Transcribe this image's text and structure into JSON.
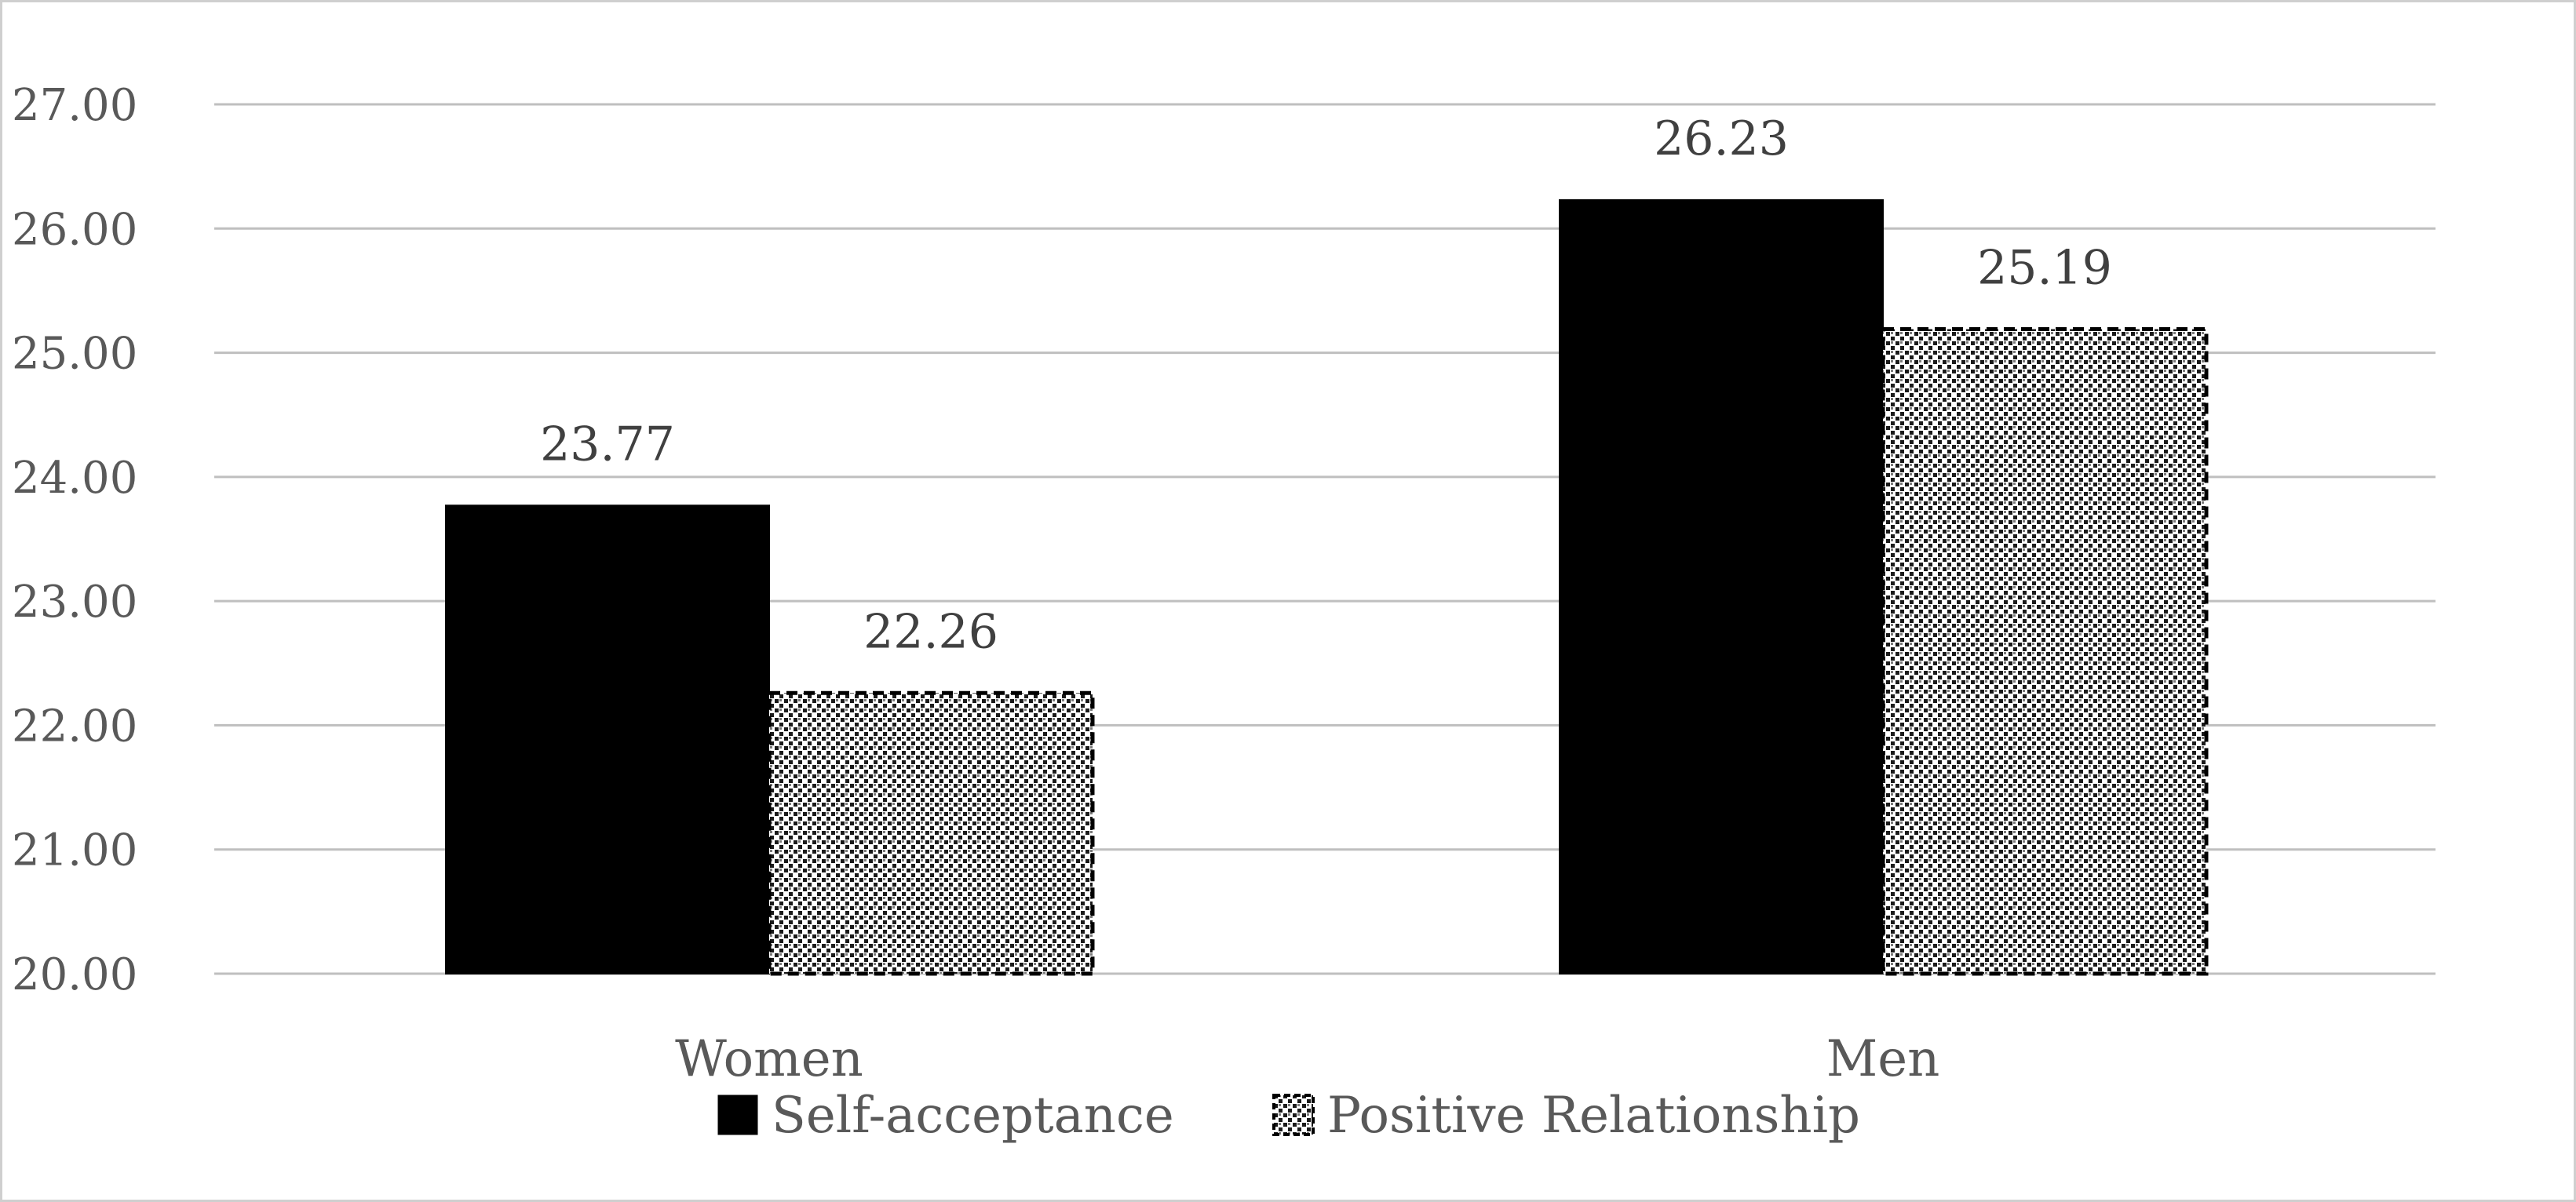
{
  "chart_data": {
    "type": "bar",
    "categories": [
      "Women",
      "Men"
    ],
    "series": [
      {
        "name": "Self-acceptance",
        "values": [
          23.77,
          26.23
        ],
        "labels": [
          "23.77",
          "26.23"
        ],
        "color": "#000000",
        "pattern": "solid"
      },
      {
        "name": "Positive Relationship",
        "values": [
          22.26,
          25.19
        ],
        "labels": [
          "22.26",
          "25.19"
        ],
        "color": "#000000",
        "pattern": "dotted"
      }
    ],
    "ylim": [
      20,
      27
    ],
    "yticks": [
      "20.00",
      "21.00",
      "22.00",
      "23.00",
      "24.00",
      "25.00",
      "26.00",
      "27.00"
    ],
    "grid": true,
    "legend": "bottom",
    "gridColor": "#bfbfbf"
  }
}
